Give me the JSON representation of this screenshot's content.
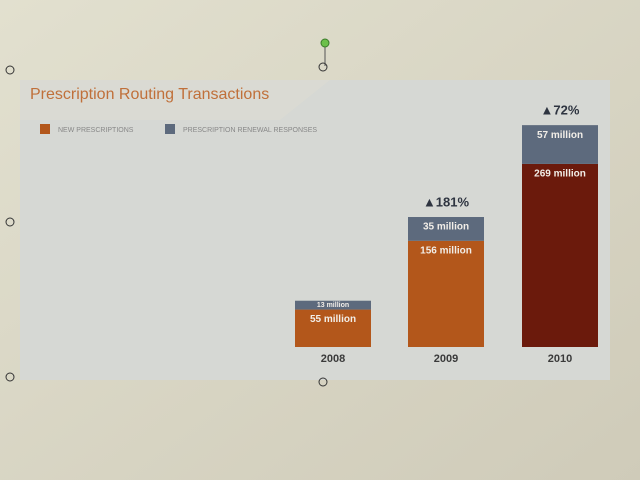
{
  "chart_data": {
    "type": "stacked-bar",
    "title": "Prescription Routing Transactions",
    "categories": [
      "2008",
      "2009",
      "2010"
    ],
    "series": [
      {
        "name": "NEW PRESCRIPTIONS",
        "colors": [
          "#b3571b",
          "#b3571b",
          "#6b1a0c"
        ],
        "values": [
          55,
          156,
          269
        ],
        "value_labels": [
          "55 million",
          "156 million",
          "269 million"
        ]
      },
      {
        "name": "PRESCRIPTION RENEWAL RESPONSES",
        "color": "#5d6a7d",
        "values": [
          13,
          35,
          57
        ],
        "value_labels": [
          "13 million",
          "35 million",
          "57 million"
        ]
      }
    ],
    "growth_labels": [
      null,
      "▲181%",
      "▲72%"
    ],
    "ylim": [
      0,
      360
    ],
    "legend": "top-left"
  }
}
